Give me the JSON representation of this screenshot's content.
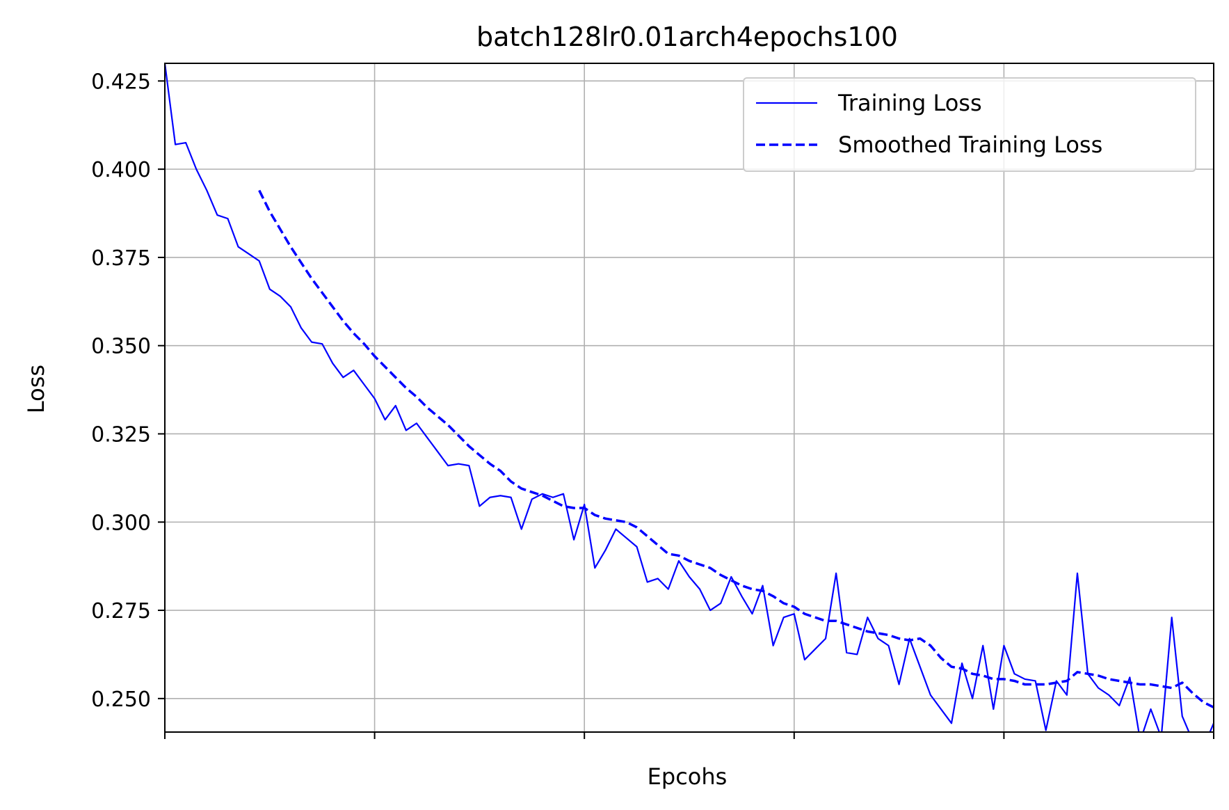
{
  "chart_data": {
    "type": "line",
    "title": "batch128lr0.01arch4epochs100",
    "xlabel": "Epcohs",
    "ylabel": "Loss",
    "xlim": [
      0,
      100
    ],
    "ylim": [
      0.2405,
      0.43
    ],
    "yticks": [
      0.25,
      0.275,
      0.3,
      0.325,
      0.35,
      0.375,
      0.4,
      0.425
    ],
    "ytick_labels": [
      "0.250",
      "0.275",
      "0.300",
      "0.325",
      "0.350",
      "0.375",
      "0.400",
      "0.425"
    ],
    "xticks": [
      0,
      20,
      40,
      60,
      80,
      100
    ],
    "xtick_labels": [
      "",
      "",
      "",
      "",
      "",
      ""
    ],
    "grid": true,
    "legend": "top-right",
    "colors": {
      "series": "#0000ff",
      "grid": "#b0b0b0",
      "axes": "#000000",
      "legend_border": "#cccccc"
    },
    "series": [
      {
        "name": "Training Loss",
        "style": "solid",
        "x": [
          0,
          1,
          2,
          3,
          4,
          5,
          6,
          7,
          8,
          9,
          10,
          11,
          12,
          13,
          14,
          15,
          16,
          17,
          18,
          19,
          20,
          21,
          22,
          23,
          24,
          25,
          26,
          27,
          28,
          29,
          30,
          31,
          32,
          33,
          34,
          35,
          36,
          37,
          38,
          39,
          40,
          41,
          42,
          43,
          44,
          45,
          46,
          47,
          48,
          49,
          50,
          51,
          52,
          53,
          54,
          55,
          56,
          57,
          58,
          59,
          60,
          61,
          62,
          63,
          64,
          65,
          66,
          67,
          68,
          69,
          70,
          71,
          72,
          73,
          74,
          75,
          76,
          77,
          78,
          79,
          80,
          81,
          82,
          83,
          84,
          85,
          86,
          87,
          88,
          89,
          90,
          91,
          92,
          93,
          94,
          95,
          96,
          97,
          98,
          99,
          100
        ],
        "values": [
          0.43,
          0.407,
          0.4075,
          0.4,
          0.394,
          0.387,
          0.386,
          0.378,
          0.376,
          0.374,
          0.366,
          0.364,
          0.361,
          0.355,
          0.351,
          0.3505,
          0.345,
          0.341,
          0.343,
          0.339,
          0.335,
          0.329,
          0.333,
          0.326,
          0.328,
          0.324,
          0.32,
          0.316,
          0.3165,
          0.316,
          0.3045,
          0.307,
          0.3075,
          0.307,
          0.298,
          0.3065,
          0.308,
          0.307,
          0.308,
          0.295,
          0.305,
          0.287,
          0.292,
          0.298,
          0.2955,
          0.293,
          0.283,
          0.284,
          0.281,
          0.289,
          0.2845,
          0.281,
          0.275,
          0.277,
          0.2845,
          0.279,
          0.274,
          0.282,
          0.265,
          0.273,
          0.274,
          0.261,
          0.264,
          0.267,
          0.2855,
          0.263,
          0.2625,
          0.273,
          0.267,
          0.265,
          0.254,
          0.267,
          0.259,
          0.251,
          0.247,
          0.243,
          0.26,
          0.25,
          0.265,
          0.247,
          0.265,
          0.257,
          0.2555,
          0.255,
          0.241,
          0.255,
          0.251,
          0.2855,
          0.257,
          0.253,
          0.251,
          0.248,
          0.256,
          0.238,
          0.247,
          0.239,
          0.273,
          0.245,
          0.238,
          0.236,
          0.243
        ]
      },
      {
        "name": "Smoothed Training Loss",
        "style": "dashed",
        "x": [
          9,
          10,
          11,
          12,
          13,
          14,
          15,
          16,
          17,
          18,
          19,
          20,
          21,
          22,
          23,
          24,
          25,
          26,
          27,
          28,
          29,
          30,
          31,
          32,
          33,
          34,
          35,
          36,
          37,
          38,
          39,
          40,
          41,
          42,
          43,
          44,
          45,
          46,
          47,
          48,
          49,
          50,
          51,
          52,
          53,
          54,
          55,
          56,
          57,
          58,
          59,
          60,
          61,
          62,
          63,
          64,
          65,
          66,
          67,
          68,
          69,
          70,
          71,
          72,
          73,
          74,
          75,
          76,
          77,
          78,
          79,
          80,
          81,
          82,
          83,
          84,
          85,
          86,
          87,
          88,
          89,
          90,
          91,
          92,
          93,
          94,
          95,
          96,
          97,
          98,
          99,
          100
        ],
        "values": [
          0.394,
          0.388,
          0.383,
          0.378,
          0.3735,
          0.369,
          0.365,
          0.361,
          0.357,
          0.3535,
          0.3505,
          0.347,
          0.344,
          0.341,
          0.338,
          0.3355,
          0.3325,
          0.33,
          0.3275,
          0.3245,
          0.3215,
          0.319,
          0.3165,
          0.3145,
          0.3115,
          0.3095,
          0.3085,
          0.3075,
          0.306,
          0.3045,
          0.304,
          0.304,
          0.302,
          0.301,
          0.3005,
          0.3,
          0.2985,
          0.296,
          0.2935,
          0.291,
          0.2905,
          0.289,
          0.288,
          0.287,
          0.285,
          0.2835,
          0.282,
          0.281,
          0.2805,
          0.279,
          0.277,
          0.276,
          0.274,
          0.273,
          0.272,
          0.272,
          0.271,
          0.27,
          0.269,
          0.2685,
          0.268,
          0.267,
          0.2665,
          0.267,
          0.265,
          0.2615,
          0.259,
          0.2585,
          0.257,
          0.2565,
          0.2555,
          0.2555,
          0.255,
          0.254,
          0.254,
          0.254,
          0.2545,
          0.255,
          0.2575,
          0.257,
          0.2565,
          0.2555,
          0.255,
          0.2545,
          0.254,
          0.254,
          0.2535,
          0.253,
          0.2545,
          0.2515,
          0.249,
          0.2475
        ]
      }
    ]
  }
}
